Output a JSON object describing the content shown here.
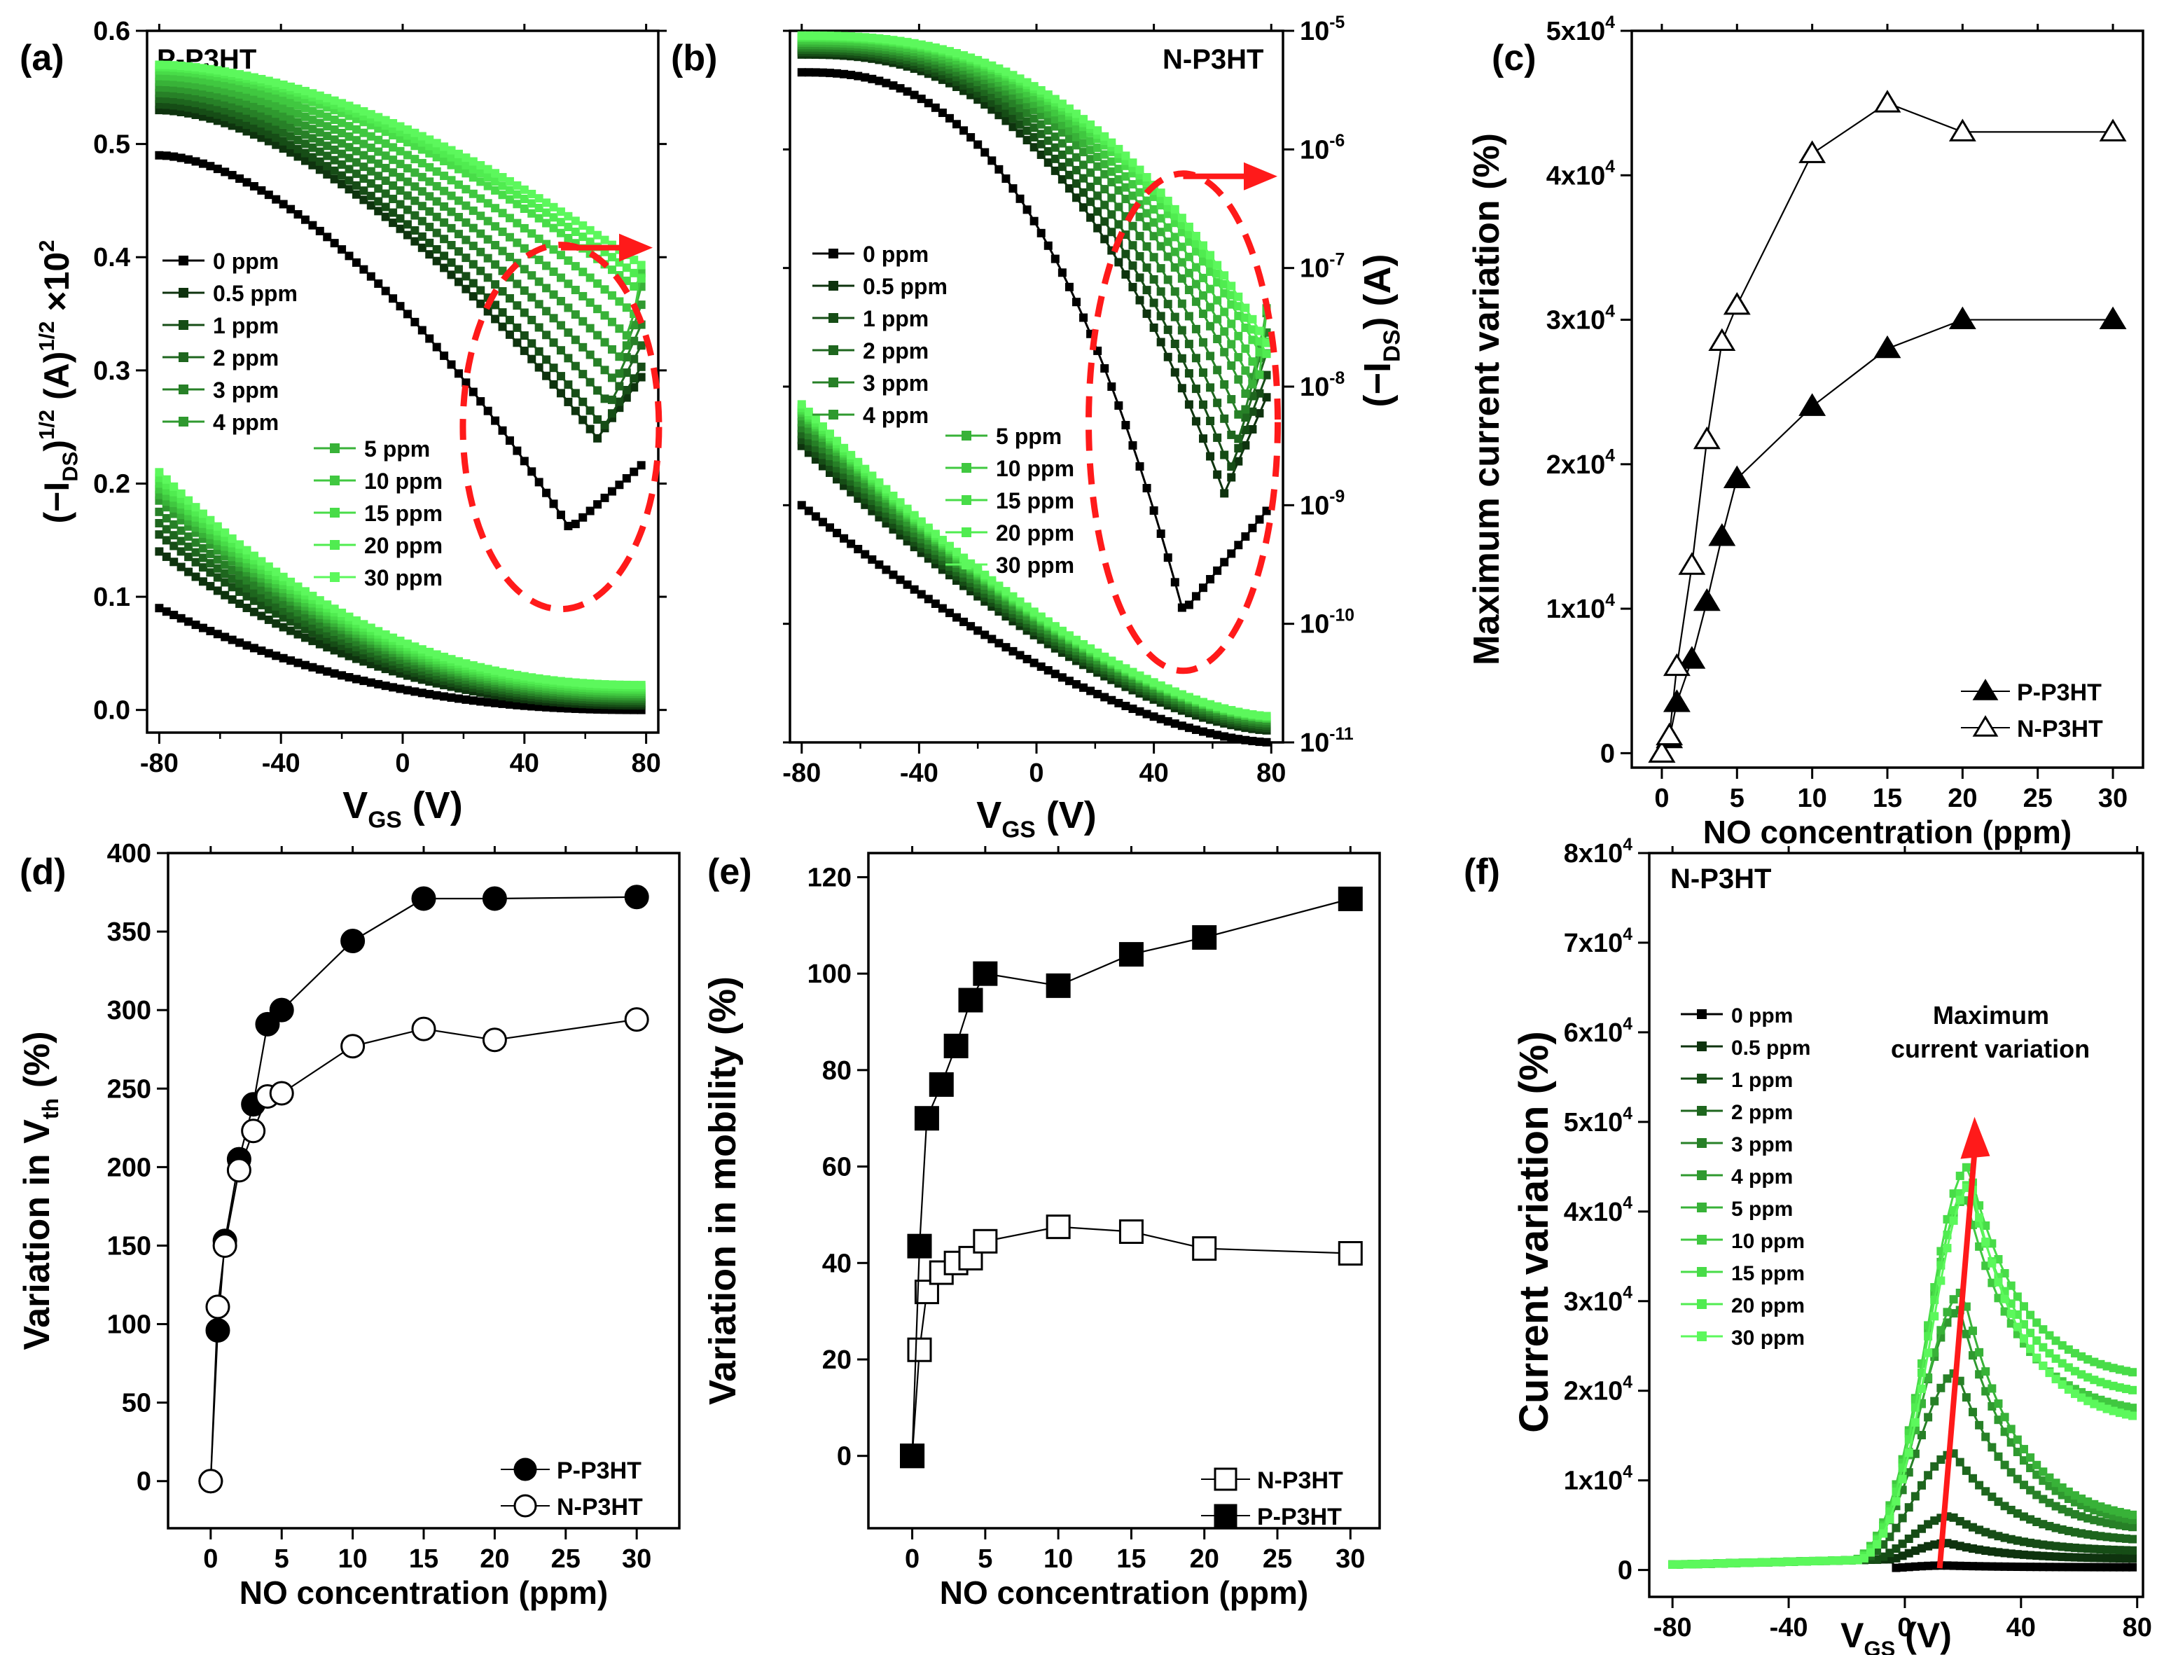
{
  "panels": {
    "a": {
      "letter": "(a)",
      "tag": "P-P3HT",
      "xlabel": "V_GS (V)",
      "ylabel": "(−I_DS)^1/2 (A)^1/2 ×10^2"
    },
    "b": {
      "letter": "(b)",
      "tag": "N-P3HT",
      "xlabel": "V_GS (V)",
      "ylabel_right": "(−I_DS) (A)"
    },
    "c": {
      "letter": "(c)"
    },
    "d": {
      "letter": "(d)"
    },
    "e": {
      "letter": "(e)"
    },
    "f": {
      "letter": "(f)",
      "tag": "N-P3HT",
      "annotation_line1": "Maximum",
      "annotation_line2": "current variation"
    }
  },
  "colors": {
    "series": [
      "#000000",
      "#0e330e",
      "#164d16",
      "#1e661e",
      "#278027",
      "#2f992f",
      "#38b238",
      "#40c840",
      "#48dc48",
      "#50ec50",
      "#5cf85c"
    ],
    "highlight": "#ff1a1a",
    "axis": "#000000"
  },
  "chart_data": [
    {
      "id": "a",
      "type": "line",
      "title": "P-P3HT",
      "xlabel": "V_GS (V)",
      "ylabel": "(−I_DS)^1/2 (A)^1/2 ×10^2",
      "xlim": [
        -84,
        84
      ],
      "ylim": [
        -0.02,
        0.6
      ],
      "xticks": [
        -80,
        -40,
        0,
        40,
        80
      ],
      "xtick_labels": [
        "-80",
        "-40",
        "0",
        "40",
        "80"
      ],
      "yticks": [
        0.0,
        0.1,
        0.2,
        0.3,
        0.4,
        0.5,
        0.6
      ],
      "ytick_labels": [
        "0.0",
        "0.1",
        "0.2",
        "0.3",
        "0.4",
        "0.5",
        "0.6"
      ],
      "legend_group1": [
        "0 ppm",
        "0.5 ppm",
        "1 ppm",
        "2 ppm",
        "3 ppm",
        "4 ppm"
      ],
      "legend_group2": [
        "5 ppm",
        "10 ppm",
        "15 ppm",
        "20 ppm",
        "30 ppm"
      ],
      "series_note": "forward/backward transfer sweeps for NO concentrations 0–30 ppm",
      "forward_start": [
        0.49,
        0.53,
        0.535,
        0.54,
        0.545,
        0.55,
        0.555,
        0.56,
        0.565,
        0.568,
        0.57
      ],
      "forward_min_v": [
        55,
        64,
        66,
        68,
        70,
        72,
        74,
        76,
        78,
        79,
        80
      ],
      "forward_min_y": [
        0.16,
        0.24,
        0.25,
        0.27,
        0.29,
        0.31,
        0.33,
        0.35,
        0.37,
        0.38,
        0.39
      ],
      "reverse_start": [
        0.09,
        0.14,
        0.155,
        0.165,
        0.175,
        0.185,
        0.19,
        0.195,
        0.2,
        0.205,
        0.21
      ],
      "reverse_end": [
        0.0,
        0.004,
        0.006,
        0.008,
        0.01,
        0.012,
        0.014,
        0.016,
        0.018,
        0.02,
        0.022
      ],
      "arrow": "right"
    },
    {
      "id": "b",
      "type": "line",
      "title": "N-P3HT",
      "xlabel": "V_GS (V)",
      "ylabel_right": "(−I_DS) (A)",
      "yscale": "log",
      "xlim": [
        -84,
        84
      ],
      "ylim_exp": [
        -11,
        -5
      ],
      "xticks": [
        -80,
        -40,
        0,
        40,
        80
      ],
      "xtick_labels": [
        "-80",
        "-40",
        "0",
        "40",
        "80"
      ],
      "yticks_exp": [
        -11,
        -10,
        -9,
        -8,
        -7,
        -6,
        -5
      ],
      "legend_group1": [
        "0 ppm",
        "0.5 ppm",
        "1 ppm",
        "2 ppm",
        "3 ppm",
        "4 ppm"
      ],
      "legend_group2": [
        "5 ppm",
        "10 ppm",
        "15 ppm",
        "20 ppm",
        "30 ppm"
      ],
      "forward_start_exp": [
        -5.35,
        -5.2,
        -5.18,
        -5.16,
        -5.14,
        -5.12,
        -5.1,
        -5.08,
        -5.06,
        -5.05,
        -5.04
      ],
      "forward_min_v": [
        50,
        64,
        66,
        68,
        70,
        72,
        74,
        76,
        78,
        79,
        80
      ],
      "forward_min_exp": [
        -9.9,
        -8.9,
        -8.7,
        -8.5,
        -8.3,
        -8.1,
        -8.0,
        -7.9,
        -7.8,
        -7.75,
        -7.7
      ],
      "reverse_start_exp": [
        -9.0,
        -8.5,
        -8.45,
        -8.4,
        -8.35,
        -8.3,
        -8.25,
        -8.22,
        -8.2,
        -8.18,
        -8.15
      ],
      "reverse_end_exp": [
        -11.0,
        -10.9,
        -10.88,
        -10.86,
        -10.84,
        -10.82,
        -10.8,
        -10.8,
        -10.79,
        -10.78,
        -10.78
      ],
      "arrow": "right"
    },
    {
      "id": "c",
      "type": "scatter",
      "xlabel": "NO concentration (ppm)",
      "ylabel": "Maximum current variation (%)",
      "xlim": [
        -2,
        32
      ],
      "ylim": [
        -1000,
        50000
      ],
      "xticks": [
        0,
        5,
        10,
        15,
        20,
        25,
        30
      ],
      "xtick_labels": [
        "0",
        "5",
        "10",
        "15",
        "20",
        "25",
        "30"
      ],
      "yticks": [
        0,
        10000,
        20000,
        30000,
        40000,
        50000
      ],
      "ytick_labels": [
        "0",
        "1x10^4",
        "2x10^4",
        "3x10^4",
        "4x10^4",
        "5x10^4"
      ],
      "x": [
        0,
        0.5,
        1,
        2,
        3,
        4,
        5,
        10,
        15,
        20,
        30
      ],
      "series": [
        {
          "name": "P-P3HT",
          "marker": "triangle-filled",
          "values": [
            0,
            1000,
            3500,
            6500,
            10500,
            15000,
            19000,
            24000,
            28000,
            30000,
            30000
          ]
        },
        {
          "name": "N-P3HT",
          "marker": "triangle-open",
          "values": [
            0,
            1200,
            6000,
            13000,
            21700,
            28500,
            31000,
            41500,
            45000,
            43000,
            43000
          ]
        }
      ],
      "legend": [
        "P-P3HT",
        "N-P3HT"
      ],
      "legend_position": "bottom-right"
    },
    {
      "id": "d",
      "type": "scatter",
      "xlabel": "NO concentration (ppm)",
      "ylabel": "Variation in V_th (%)",
      "xlim": [
        -3,
        33
      ],
      "ylim": [
        -30,
        400
      ],
      "xticks": [
        0,
        5,
        10,
        15,
        20,
        25,
        30
      ],
      "xtick_labels": [
        "0",
        "5",
        "10",
        "15",
        "20",
        "25",
        "30"
      ],
      "yticks": [
        0,
        50,
        100,
        150,
        200,
        250,
        300,
        350,
        400
      ],
      "ytick_labels": [
        "0",
        "50",
        "100",
        "150",
        "200",
        "250",
        "300",
        "350",
        "400"
      ],
      "x": [
        0,
        0.5,
        1,
        2,
        3,
        4,
        5,
        10,
        15,
        20,
        30
      ],
      "series": [
        {
          "name": "P-P3HT",
          "marker": "circle-filled",
          "values": [
            0,
            96,
            153,
            205,
            240,
            291,
            300,
            344,
            371,
            371,
            372
          ]
        },
        {
          "name": "N-P3HT",
          "marker": "circle-open",
          "values": [
            0,
            111,
            150,
            198,
            223,
            245,
            247,
            277,
            288,
            281,
            294
          ]
        }
      ],
      "legend": [
        "P-P3HT",
        "N-P3HT"
      ],
      "legend_position": "bottom-right"
    },
    {
      "id": "e",
      "type": "scatter",
      "xlabel": "NO concentration (ppm)",
      "ylabel": "Variation in mobility (%)",
      "xlim": [
        -3,
        32
      ],
      "ylim": [
        -15,
        125
      ],
      "xticks": [
        0,
        5,
        10,
        15,
        20,
        25,
        30
      ],
      "xtick_labels": [
        "0",
        "5",
        "10",
        "15",
        "20",
        "25",
        "30"
      ],
      "yticks": [
        0,
        20,
        40,
        60,
        80,
        100,
        120
      ],
      "ytick_labels": [
        "0",
        "20",
        "40",
        "60",
        "80",
        "100",
        "120"
      ],
      "x": [
        0,
        0.5,
        1,
        2,
        3,
        4,
        5,
        10,
        15,
        20,
        30
      ],
      "series": [
        {
          "name": "N-P3HT",
          "marker": "square-open",
          "values": [
            0,
            22,
            34,
            38,
            40,
            41,
            44.5,
            47.5,
            46.5,
            43,
            42
          ]
        },
        {
          "name": "P-P3HT",
          "marker": "square-filled",
          "values": [
            0,
            43.5,
            70,
            77,
            85,
            94.5,
            100,
            97.5,
            104,
            107.5,
            115.5
          ]
        }
      ],
      "legend": [
        "N-P3HT",
        "P-P3HT"
      ],
      "legend_position": "bottom-right"
    },
    {
      "id": "f",
      "type": "line",
      "title": "N-P3HT",
      "xlabel": "V_GS (V)",
      "ylabel": "Current variation (%)",
      "xlim": [
        -88,
        82
      ],
      "ylim": [
        -3000,
        80000
      ],
      "xticks": [
        -80,
        -40,
        0,
        40,
        80
      ],
      "xtick_labels": [
        "-80",
        "-40",
        "0",
        "40",
        "80"
      ],
      "yticks": [
        0,
        10000,
        20000,
        30000,
        40000,
        50000,
        60000,
        70000,
        80000
      ],
      "ytick_labels": [
        "0",
        "1x10^4",
        "2x10^4",
        "3x10^4",
        "4x10^4",
        "5x10^4",
        "6x10^4",
        "7x10^4",
        "8x10^4"
      ],
      "legend": [
        "0 ppm",
        "0.5 ppm",
        "1 ppm",
        "2 ppm",
        "3 ppm",
        "4 ppm",
        "5 ppm",
        "10 ppm",
        "15 ppm",
        "20 ppm",
        "30 ppm"
      ],
      "peak_v": [
        14,
        15,
        16,
        17,
        18,
        19,
        20,
        21,
        22,
        22,
        23
      ],
      "peak_value": [
        500,
        3000,
        6000,
        13000,
        22000,
        29000,
        31000,
        41500,
        45000,
        43000,
        43000
      ],
      "end_value": [
        300,
        1200,
        2000,
        3000,
        4000,
        4500,
        5000,
        17000,
        21000,
        19000,
        16000
      ],
      "arrow_from": [
        12,
        200
      ],
      "arrow_to": [
        24,
        49000
      ]
    }
  ]
}
